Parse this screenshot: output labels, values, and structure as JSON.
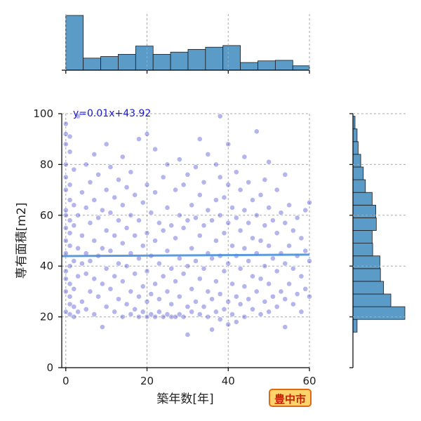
{
  "chart_data": {
    "type": "scatter",
    "xlabel": "築年数[年]",
    "ylabel": "専有面積[m2]",
    "xlim": [
      -1,
      60
    ],
    "ylim": [
      0,
      100
    ],
    "xticks": [
      "0",
      "20",
      "40",
      "60"
    ],
    "yticks": [
      "0",
      "20",
      "40",
      "60",
      "80",
      "100"
    ],
    "grid": true,
    "annotation": "y=0.01x+43.92",
    "regression": {
      "slope": 0.01,
      "intercept": 43.92
    },
    "point_color": "#2a2acc",
    "line_color": "#4a90d9",
    "hist_color": "#5b9bc8",
    "top_histogram": {
      "bin_edges": [
        0,
        4.3,
        8.6,
        12.9,
        17.2,
        21.5,
        25.8,
        30.1,
        34.4,
        38.7,
        43,
        47.3,
        51.6,
        55.9,
        60
      ],
      "counts": [
        100,
        22,
        25,
        29,
        44,
        29,
        33,
        38,
        42,
        45,
        14,
        17,
        18,
        8
      ]
    },
    "right_histogram": {
      "bin_edges": [
        14,
        19,
        24,
        29,
        34,
        39,
        44,
        49,
        54,
        59,
        64,
        69,
        74,
        79,
        84,
        89,
        94,
        99
      ],
      "counts": [
        8,
        100,
        73,
        59,
        53,
        52,
        38,
        37,
        45,
        44,
        37,
        24,
        20,
        15,
        10,
        8,
        4
      ]
    },
    "points": [
      {
        "x": 0,
        "y": 22
      },
      {
        "x": 0,
        "y": 30
      },
      {
        "x": 0,
        "y": 35
      },
      {
        "x": 0,
        "y": 38
      },
      {
        "x": 0,
        "y": 45
      },
      {
        "x": 0,
        "y": 50
      },
      {
        "x": 0,
        "y": 55
      },
      {
        "x": 0,
        "y": 60
      },
      {
        "x": 0,
        "y": 62
      },
      {
        "x": 0,
        "y": 70
      },
      {
        "x": 0,
        "y": 75
      },
      {
        "x": 0,
        "y": 80
      },
      {
        "x": 0,
        "y": 88
      },
      {
        "x": 0,
        "y": 92
      },
      {
        "x": 0,
        "y": 96
      },
      {
        "x": 1,
        "y": 21
      },
      {
        "x": 1,
        "y": 25
      },
      {
        "x": 1,
        "y": 28
      },
      {
        "x": 1,
        "y": 33
      },
      {
        "x": 1,
        "y": 40
      },
      {
        "x": 1,
        "y": 48
      },
      {
        "x": 1,
        "y": 53
      },
      {
        "x": 1,
        "y": 58
      },
      {
        "x": 1,
        "y": 66
      },
      {
        "x": 1,
        "y": 72
      },
      {
        "x": 1,
        "y": 85
      },
      {
        "x": 1,
        "y": 91
      },
      {
        "x": 2,
        "y": 20
      },
      {
        "x": 2,
        "y": 24
      },
      {
        "x": 2,
        "y": 31
      },
      {
        "x": 2,
        "y": 42
      },
      {
        "x": 2,
        "y": 56
      },
      {
        "x": 2,
        "y": 64
      },
      {
        "x": 2,
        "y": 78
      },
      {
        "x": 3,
        "y": 22
      },
      {
        "x": 3,
        "y": 36
      },
      {
        "x": 3,
        "y": 47
      },
      {
        "x": 3,
        "y": 60
      },
      {
        "x": 3,
        "y": 99
      },
      {
        "x": 4,
        "y": 26
      },
      {
        "x": 4,
        "y": 41
      },
      {
        "x": 4,
        "y": 52
      },
      {
        "x": 4,
        "y": 69
      },
      {
        "x": 5,
        "y": 23
      },
      {
        "x": 5,
        "y": 37
      },
      {
        "x": 5,
        "y": 45
      },
      {
        "x": 5,
        "y": 63
      },
      {
        "x": 5,
        "y": 80
      },
      {
        "x": 6,
        "y": 30
      },
      {
        "x": 6,
        "y": 42
      },
      {
        "x": 6,
        "y": 57
      },
      {
        "x": 6,
        "y": 73
      },
      {
        "x": 7,
        "y": 21
      },
      {
        "x": 7,
        "y": 35
      },
      {
        "x": 7,
        "y": 50
      },
      {
        "x": 7,
        "y": 66
      },
      {
        "x": 7,
        "y": 84
      },
      {
        "x": 8,
        "y": 28
      },
      {
        "x": 8,
        "y": 44
      },
      {
        "x": 8,
        "y": 59
      },
      {
        "x": 8,
        "y": 76
      },
      {
        "x": 9,
        "y": 16
      },
      {
        "x": 9,
        "y": 33
      },
      {
        "x": 9,
        "y": 47
      },
      {
        "x": 9,
        "y": 62
      },
      {
        "x": 10,
        "y": 24
      },
      {
        "x": 10,
        "y": 39
      },
      {
        "x": 10,
        "y": 54
      },
      {
        "x": 10,
        "y": 70
      },
      {
        "x": 10,
        "y": 88
      },
      {
        "x": 11,
        "y": 31
      },
      {
        "x": 11,
        "y": 46
      },
      {
        "x": 11,
        "y": 61
      },
      {
        "x": 11,
        "y": 79
      },
      {
        "x": 12,
        "y": 22
      },
      {
        "x": 12,
        "y": 36
      },
      {
        "x": 12,
        "y": 52
      },
      {
        "x": 12,
        "y": 67
      },
      {
        "x": 13,
        "y": 27
      },
      {
        "x": 13,
        "y": 41
      },
      {
        "x": 13,
        "y": 58
      },
      {
        "x": 13,
        "y": 74
      },
      {
        "x": 14,
        "y": 20
      },
      {
        "x": 14,
        "y": 34
      },
      {
        "x": 14,
        "y": 49
      },
      {
        "x": 14,
        "y": 64
      },
      {
        "x": 14,
        "y": 83
      },
      {
        "x": 15,
        "y": 25
      },
      {
        "x": 15,
        "y": 40
      },
      {
        "x": 15,
        "y": 55
      },
      {
        "x": 15,
        "y": 71
      },
      {
        "x": 16,
        "y": 21
      },
      {
        "x": 16,
        "y": 30
      },
      {
        "x": 16,
        "y": 45
      },
      {
        "x": 16,
        "y": 60
      },
      {
        "x": 16,
        "y": 77
      },
      {
        "x": 17,
        "y": 23
      },
      {
        "x": 17,
        "y": 37
      },
      {
        "x": 17,
        "y": 52
      },
      {
        "x": 17,
        "y": 68
      },
      {
        "x": 18,
        "y": 20
      },
      {
        "x": 18,
        "y": 28
      },
      {
        "x": 18,
        "y": 43
      },
      {
        "x": 18,
        "y": 58
      },
      {
        "x": 18,
        "y": 90
      },
      {
        "x": 19,
        "y": 22
      },
      {
        "x": 19,
        "y": 32
      },
      {
        "x": 19,
        "y": 48
      },
      {
        "x": 19,
        "y": 65
      },
      {
        "x": 20,
        "y": 20
      },
      {
        "x": 20,
        "y": 26
      },
      {
        "x": 20,
        "y": 38
      },
      {
        "x": 20,
        "y": 53
      },
      {
        "x": 20,
        "y": 72
      },
      {
        "x": 20,
        "y": 92
      },
      {
        "x": 21,
        "y": 21
      },
      {
        "x": 21,
        "y": 29
      },
      {
        "x": 21,
        "y": 44
      },
      {
        "x": 21,
        "y": 61
      },
      {
        "x": 22,
        "y": 20
      },
      {
        "x": 22,
        "y": 33
      },
      {
        "x": 22,
        "y": 50
      },
      {
        "x": 22,
        "y": 69
      },
      {
        "x": 22,
        "y": 86
      },
      {
        "x": 23,
        "y": 22
      },
      {
        "x": 23,
        "y": 27
      },
      {
        "x": 23,
        "y": 41
      },
      {
        "x": 23,
        "y": 57
      },
      {
        "x": 24,
        "y": 20
      },
      {
        "x": 24,
        "y": 36
      },
      {
        "x": 24,
        "y": 54
      },
      {
        "x": 24,
        "y": 75
      },
      {
        "x": 25,
        "y": 21
      },
      {
        "x": 25,
        "y": 30
      },
      {
        "x": 25,
        "y": 46
      },
      {
        "x": 25,
        "y": 63
      },
      {
        "x": 25,
        "y": 80
      },
      {
        "x": 26,
        "y": 20
      },
      {
        "x": 26,
        "y": 25
      },
      {
        "x": 26,
        "y": 39
      },
      {
        "x": 26,
        "y": 56
      },
      {
        "x": 27,
        "y": 20
      },
      {
        "x": 27,
        "y": 34
      },
      {
        "x": 27,
        "y": 51
      },
      {
        "x": 27,
        "y": 70
      },
      {
        "x": 28,
        "y": 21
      },
      {
        "x": 28,
        "y": 28
      },
      {
        "x": 28,
        "y": 43
      },
      {
        "x": 28,
        "y": 60
      },
      {
        "x": 28,
        "y": 82
      },
      {
        "x": 29,
        "y": 20
      },
      {
        "x": 29,
        "y": 37
      },
      {
        "x": 29,
        "y": 55
      },
      {
        "x": 29,
        "y": 72
      },
      {
        "x": 30,
        "y": 13
      },
      {
        "x": 30,
        "y": 24
      },
      {
        "x": 30,
        "y": 40
      },
      {
        "x": 30,
        "y": 58
      },
      {
        "x": 30,
        "y": 76
      },
      {
        "x": 31,
        "y": 22
      },
      {
        "x": 31,
        "y": 31
      },
      {
        "x": 31,
        "y": 47
      },
      {
        "x": 31,
        "y": 64
      },
      {
        "x": 32,
        "y": 26
      },
      {
        "x": 32,
        "y": 42
      },
      {
        "x": 32,
        "y": 59
      },
      {
        "x": 32,
        "y": 79
      },
      {
        "x": 33,
        "y": 21
      },
      {
        "x": 33,
        "y": 35
      },
      {
        "x": 33,
        "y": 52
      },
      {
        "x": 33,
        "y": 68
      },
      {
        "x": 33,
        "y": 90
      },
      {
        "x": 34,
        "y": 24
      },
      {
        "x": 34,
        "y": 39
      },
      {
        "x": 34,
        "y": 56
      },
      {
        "x": 34,
        "y": 73
      },
      {
        "x": 35,
        "y": 20
      },
      {
        "x": 35,
        "y": 30
      },
      {
        "x": 35,
        "y": 45
      },
      {
        "x": 35,
        "y": 62
      },
      {
        "x": 35,
        "y": 84
      },
      {
        "x": 36,
        "y": 15
      },
      {
        "x": 36,
        "y": 27
      },
      {
        "x": 36,
        "y": 43
      },
      {
        "x": 36,
        "y": 58
      },
      {
        "x": 37,
        "y": 22
      },
      {
        "x": 37,
        "y": 34
      },
      {
        "x": 37,
        "y": 50
      },
      {
        "x": 37,
        "y": 66
      },
      {
        "x": 37,
        "y": 80
      },
      {
        "x": 38,
        "y": 19
      },
      {
        "x": 38,
        "y": 29
      },
      {
        "x": 38,
        "y": 44
      },
      {
        "x": 38,
        "y": 60
      },
      {
        "x": 38,
        "y": 75
      },
      {
        "x": 38,
        "y": 99
      },
      {
        "x": 39,
        "y": 23
      },
      {
        "x": 39,
        "y": 38
      },
      {
        "x": 39,
        "y": 53
      },
      {
        "x": 39,
        "y": 67
      },
      {
        "x": 40,
        "y": 17
      },
      {
        "x": 40,
        "y": 26
      },
      {
        "x": 40,
        "y": 41
      },
      {
        "x": 40,
        "y": 57
      },
      {
        "x": 40,
        "y": 72
      },
      {
        "x": 40,
        "y": 88
      },
      {
        "x": 41,
        "y": 21
      },
      {
        "x": 41,
        "y": 33
      },
      {
        "x": 41,
        "y": 48
      },
      {
        "x": 41,
        "y": 63
      },
      {
        "x": 42,
        "y": 18
      },
      {
        "x": 42,
        "y": 28
      },
      {
        "x": 42,
        "y": 44
      },
      {
        "x": 42,
        "y": 59
      },
      {
        "x": 42,
        "y": 77
      },
      {
        "x": 43,
        "y": 25
      },
      {
        "x": 43,
        "y": 39
      },
      {
        "x": 43,
        "y": 54
      },
      {
        "x": 43,
        "y": 70
      },
      {
        "x": 44,
        "y": 20
      },
      {
        "x": 44,
        "y": 32
      },
      {
        "x": 44,
        "y": 47
      },
      {
        "x": 44,
        "y": 62
      },
      {
        "x": 44,
        "y": 83
      },
      {
        "x": 45,
        "y": 27
      },
      {
        "x": 45,
        "y": 42
      },
      {
        "x": 45,
        "y": 57
      },
      {
        "x": 45,
        "y": 73
      },
      {
        "x": 46,
        "y": 23
      },
      {
        "x": 46,
        "y": 36
      },
      {
        "x": 46,
        "y": 51
      },
      {
        "x": 46,
        "y": 66
      },
      {
        "x": 47,
        "y": 30
      },
      {
        "x": 47,
        "y": 45
      },
      {
        "x": 47,
        "y": 60
      },
      {
        "x": 47,
        "y": 93
      },
      {
        "x": 48,
        "y": 21
      },
      {
        "x": 48,
        "y": 35
      },
      {
        "x": 48,
        "y": 50
      },
      {
        "x": 48,
        "y": 68
      },
      {
        "x": 49,
        "y": 26
      },
      {
        "x": 49,
        "y": 40
      },
      {
        "x": 49,
        "y": 56
      },
      {
        "x": 49,
        "y": 74
      },
      {
        "x": 50,
        "y": 22
      },
      {
        "x": 50,
        "y": 33
      },
      {
        "x": 50,
        "y": 48
      },
      {
        "x": 50,
        "y": 63
      },
      {
        "x": 50,
        "y": 81
      },
      {
        "x": 51,
        "y": 28
      },
      {
        "x": 51,
        "y": 43
      },
      {
        "x": 51,
        "y": 58
      },
      {
        "x": 52,
        "y": 24
      },
      {
        "x": 52,
        "y": 38
      },
      {
        "x": 52,
        "y": 53
      },
      {
        "x": 52,
        "y": 70
      },
      {
        "x": 53,
        "y": 30
      },
      {
        "x": 53,
        "y": 45
      },
      {
        "x": 53,
        "y": 61
      },
      {
        "x": 54,
        "y": 16
      },
      {
        "x": 54,
        "y": 27
      },
      {
        "x": 54,
        "y": 41
      },
      {
        "x": 54,
        "y": 57
      },
      {
        "x": 54,
        "y": 76
      },
      {
        "x": 55,
        "y": 33
      },
      {
        "x": 55,
        "y": 48
      },
      {
        "x": 55,
        "y": 64
      },
      {
        "x": 56,
        "y": 25
      },
      {
        "x": 56,
        "y": 39
      },
      {
        "x": 56,
        "y": 54
      },
      {
        "x": 57,
        "y": 29
      },
      {
        "x": 57,
        "y": 44
      },
      {
        "x": 57,
        "y": 59
      },
      {
        "x": 58,
        "y": 22
      },
      {
        "x": 58,
        "y": 36
      },
      {
        "x": 58,
        "y": 51
      },
      {
        "x": 59,
        "y": 31
      },
      {
        "x": 59,
        "y": 46
      },
      {
        "x": 59,
        "y": 62
      },
      {
        "x": 60,
        "y": 28
      },
      {
        "x": 60,
        "y": 42
      },
      {
        "x": 60,
        "y": 65
      }
    ]
  },
  "badge_label": "豊中市"
}
